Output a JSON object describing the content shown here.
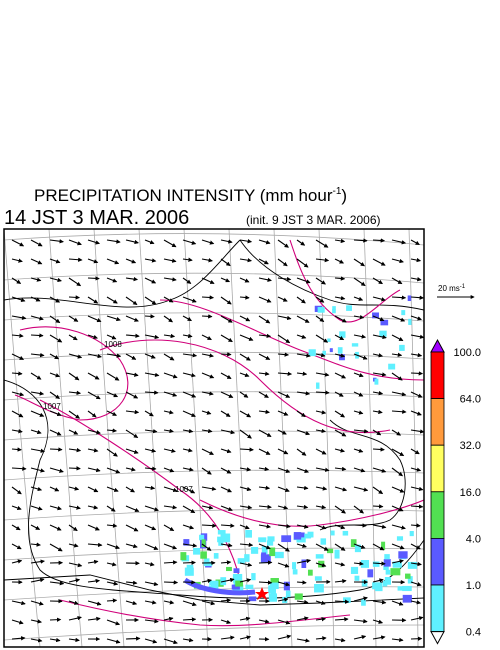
{
  "header": {
    "title_main": "PRECIPITATION INTENSITY (mm hour",
    "title_sup": "-1",
    "title_end": ")",
    "valid_time": "14 JST 3 MAR. 2006",
    "init_time": "(init. 9 JST 3 MAR. 2006)"
  },
  "map": {
    "isobar_labels": [
      "1008",
      "1007",
      "1007"
    ]
  },
  "vector_legend": {
    "text": "20 ms",
    "sup": "-1"
  },
  "colorbar": {
    "labels": [
      "100.0",
      "64.0",
      "32.0",
      "16.0",
      "4.0",
      "1.0",
      "0.4"
    ],
    "colors": [
      "#a000ff",
      "#ff0000",
      "#ff9a3c",
      "#ffff60",
      "#52e052",
      "#5a5aff",
      "#5ff0ff",
      "#ffffff"
    ]
  }
}
